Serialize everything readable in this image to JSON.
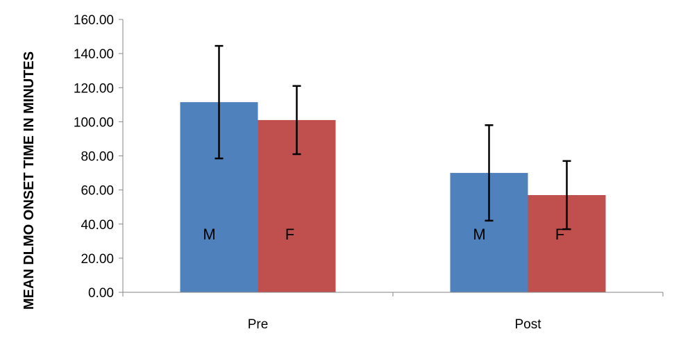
{
  "chart_data": {
    "type": "bar",
    "title": "",
    "xlabel": "",
    "ylabel": "MEAN DLMO ONSET TIME IN MINUTES",
    "categories": [
      "Pre",
      "Post"
    ],
    "ylim": [
      0,
      160
    ],
    "yticks": [
      "0.00",
      "20.00",
      "40.00",
      "60.00",
      "80.00",
      "100.00",
      "120.00",
      "140.00",
      "160.00"
    ],
    "grid": false,
    "legend": "none",
    "series": [
      {
        "label": "M",
        "color": "#4F81BD",
        "values": [
          111.5,
          70.0
        ],
        "error": [
          33.0,
          28.0
        ]
      },
      {
        "label": "F",
        "color": "#C0504D",
        "values": [
          101.0,
          57.0
        ],
        "error": [
          20.0,
          20.0
        ]
      }
    ]
  }
}
